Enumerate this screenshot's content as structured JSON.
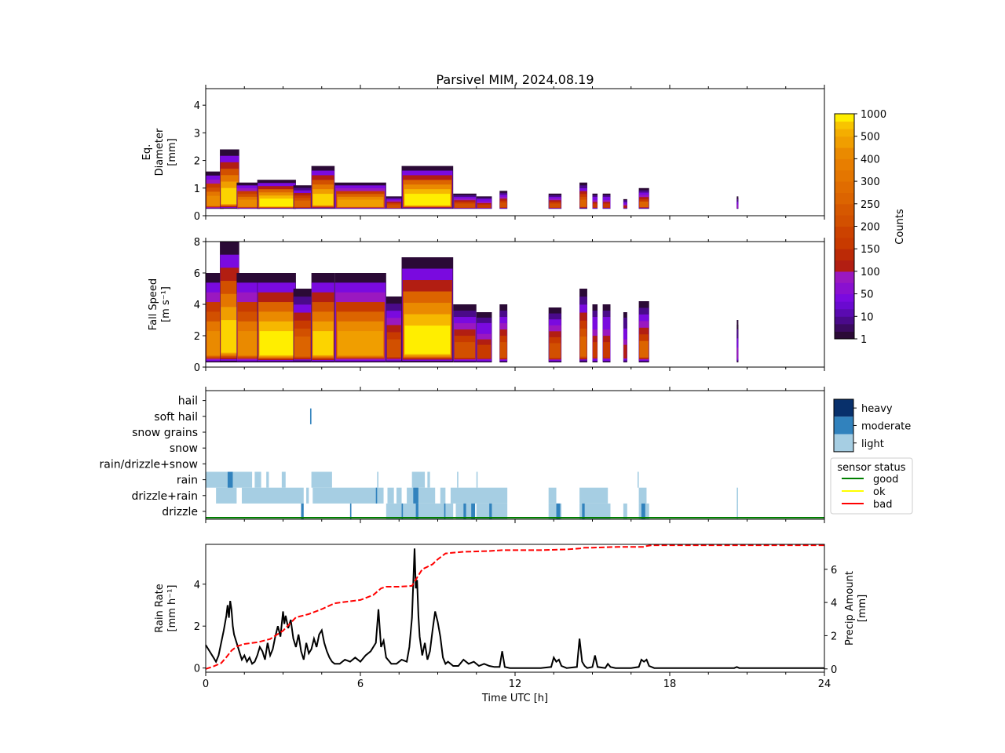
{
  "title": "Parsivel MIM, 2024.08.19",
  "colors": {
    "axis": "#000000",
    "heavy": "#08306b",
    "moderate": "#3182bd",
    "light": "#a6cee3",
    "good": "#008000",
    "ok": "#ffff00",
    "bad": "#ff0000",
    "rain_rate_line": "#000000",
    "precip_line": "#ff0000"
  },
  "chart_data": [
    {
      "type": "heatmap",
      "name": "diameter-panel",
      "ylabel": [
        "Eq.",
        "Diameter",
        "[mm]"
      ],
      "xlim": [
        0,
        24
      ],
      "ylim": [
        0,
        4.6
      ],
      "yticks": [
        "0",
        "1",
        "2",
        "3",
        "4"
      ],
      "colorbar": {
        "label": "Counts",
        "ticks": [
          "1",
          "10",
          "50",
          "100",
          "150",
          "200",
          "250",
          "300",
          "400",
          "500",
          "1000"
        ]
      },
      "episodes": [
        {
          "t0": 0.0,
          "t1": 0.7,
          "top": 1.6,
          "peak": 1.0
        },
        {
          "t0": 0.55,
          "t1": 1.3,
          "top": 2.4,
          "peak": 1.3
        },
        {
          "t0": 1.2,
          "t1": 2.1,
          "top": 1.2,
          "peak": 1.0
        },
        {
          "t0": 2.0,
          "t1": 3.5,
          "top": 1.3,
          "peak": 1.4
        },
        {
          "t0": 3.4,
          "t1": 4.1,
          "top": 1.1,
          "peak": 0.8
        },
        {
          "t0": 4.1,
          "t1": 5.0,
          "top": 1.8,
          "peak": 1.3
        },
        {
          "t0": 5.0,
          "t1": 7.0,
          "top": 1.2,
          "peak": 1.1
        },
        {
          "t0": 7.0,
          "t1": 7.6,
          "top": 0.7,
          "peak": 0.6
        },
        {
          "t0": 7.6,
          "t1": 9.6,
          "top": 1.8,
          "peak": 1.4
        },
        {
          "t0": 9.6,
          "t1": 10.5,
          "top": 0.8,
          "peak": 0.6
        },
        {
          "t0": 10.5,
          "t1": 11.1,
          "top": 0.7,
          "peak": 0.5
        },
        {
          "t0": 11.4,
          "t1": 11.7,
          "top": 0.9,
          "peak": 0.6
        },
        {
          "t0": 13.3,
          "t1": 13.8,
          "top": 0.8,
          "peak": 0.6
        },
        {
          "t0": 14.5,
          "t1": 14.8,
          "top": 1.2,
          "peak": 0.8
        },
        {
          "t0": 15.0,
          "t1": 15.2,
          "top": 0.8,
          "peak": 0.5
        },
        {
          "t0": 15.4,
          "t1": 15.7,
          "top": 0.8,
          "peak": 0.5
        },
        {
          "t0": 16.2,
          "t1": 16.35,
          "top": 0.6,
          "peak": 0.4
        },
        {
          "t0": 16.8,
          "t1": 17.2,
          "top": 1.0,
          "peak": 0.7
        },
        {
          "t0": 20.6,
          "t1": 20.65,
          "top": 0.7,
          "peak": 0.3
        }
      ]
    },
    {
      "type": "heatmap",
      "name": "fallspeed-panel",
      "ylabel": [
        "Fall Speed",
        "[m s⁻¹]"
      ],
      "xlim": [
        0,
        24
      ],
      "ylim": [
        0,
        8
      ],
      "yticks": [
        "0",
        "2",
        "4",
        "6",
        "8"
      ],
      "episodes": [
        {
          "t0": 0.0,
          "t1": 0.7,
          "top": 6.0,
          "peak": 1.0
        },
        {
          "t0": 0.55,
          "t1": 1.3,
          "top": 8.0,
          "peak": 1.3
        },
        {
          "t0": 1.2,
          "t1": 2.1,
          "top": 6.0,
          "peak": 1.0
        },
        {
          "t0": 2.0,
          "t1": 3.5,
          "top": 6.0,
          "peak": 1.4
        },
        {
          "t0": 3.4,
          "t1": 4.1,
          "top": 5.0,
          "peak": 0.8
        },
        {
          "t0": 4.1,
          "t1": 5.0,
          "top": 6.0,
          "peak": 1.3
        },
        {
          "t0": 5.0,
          "t1": 7.0,
          "top": 6.0,
          "peak": 1.1
        },
        {
          "t0": 7.0,
          "t1": 7.6,
          "top": 4.5,
          "peak": 0.6
        },
        {
          "t0": 7.6,
          "t1": 9.6,
          "top": 7.0,
          "peak": 1.4
        },
        {
          "t0": 9.6,
          "t1": 10.5,
          "top": 4.0,
          "peak": 0.6
        },
        {
          "t0": 10.5,
          "t1": 11.1,
          "top": 3.5,
          "peak": 0.5
        },
        {
          "t0": 11.4,
          "t1": 11.7,
          "top": 4.0,
          "peak": 0.6
        },
        {
          "t0": 13.3,
          "t1": 13.8,
          "top": 3.8,
          "peak": 0.6
        },
        {
          "t0": 14.5,
          "t1": 14.8,
          "top": 5.0,
          "peak": 0.8
        },
        {
          "t0": 15.0,
          "t1": 15.2,
          "top": 4.0,
          "peak": 0.5
        },
        {
          "t0": 15.4,
          "t1": 15.7,
          "top": 4.0,
          "peak": 0.5
        },
        {
          "t0": 16.2,
          "t1": 16.35,
          "top": 3.5,
          "peak": 0.4
        },
        {
          "t0": 16.8,
          "t1": 17.2,
          "top": 4.2,
          "peak": 0.7
        },
        {
          "t0": 20.6,
          "t1": 20.65,
          "top": 3.0,
          "peak": 0.3
        }
      ]
    },
    {
      "type": "heatmap",
      "name": "precip-type-panel",
      "categories": [
        "drizzle",
        "drizzle+rain",
        "rain",
        "rain/drizzle+snow",
        "snow",
        "snow grains",
        "soft hail",
        "hail"
      ],
      "xlim": [
        0,
        24
      ],
      "intensity_legend": [
        "heavy",
        "moderate",
        "light"
      ],
      "status_legend": {
        "title": "sensor status",
        "items": [
          "good",
          "ok",
          "bad"
        ]
      },
      "status_good_spans": [
        [
          0,
          24
        ]
      ],
      "light_spans": {
        "rain": [
          [
            0,
            1.8
          ],
          [
            1.9,
            2.15
          ],
          [
            2.35,
            2.45
          ],
          [
            2.95,
            3.1
          ],
          [
            4.1,
            4.9
          ],
          [
            6.65,
            6.7
          ],
          [
            8.0,
            8.5
          ],
          [
            8.6,
            8.7
          ],
          [
            9.75,
            9.8
          ],
          [
            10.5,
            10.55
          ],
          [
            16.75,
            16.8
          ]
        ],
        "drizzle+rain": [
          [
            0.4,
            1.2
          ],
          [
            1.4,
            3.8
          ],
          [
            3.9,
            4.0
          ],
          [
            4.15,
            6.9
          ],
          [
            7.05,
            7.3
          ],
          [
            7.4,
            7.6
          ],
          [
            7.8,
            8.9
          ],
          [
            9.1,
            9.3
          ],
          [
            9.5,
            11.7
          ],
          [
            13.3,
            13.6
          ],
          [
            14.5,
            15.6
          ],
          [
            16.8,
            17.1
          ],
          [
            20.6,
            20.65
          ]
        ],
        "drizzle": [
          [
            7.0,
            9.6
          ],
          [
            9.7,
            10.4
          ],
          [
            10.5,
            11.7
          ],
          [
            13.3,
            13.8
          ],
          [
            14.5,
            15.7
          ],
          [
            16.2,
            16.35
          ],
          [
            16.8,
            17.2
          ],
          [
            20.6,
            20.65
          ]
        ]
      },
      "moderate_spans": {
        "soft hail": [
          [
            4.05,
            4.1
          ]
        ],
        "rain": [
          [
            0.85,
            1.05
          ]
        ],
        "drizzle+rain": [
          [
            6.6,
            6.65
          ],
          [
            8.05,
            8.25
          ]
        ],
        "drizzle": [
          [
            3.7,
            3.8
          ],
          [
            5.6,
            5.65
          ],
          [
            7.6,
            7.65
          ],
          [
            8.15,
            8.25
          ],
          [
            9.25,
            9.3
          ],
          [
            10.0,
            10.1
          ],
          [
            10.3,
            10.45
          ],
          [
            11.0,
            11.1
          ],
          [
            13.6,
            13.75
          ],
          [
            14.6,
            14.7
          ],
          [
            16.9,
            17.05
          ]
        ]
      }
    },
    {
      "type": "line",
      "name": "rain-rate-panel",
      "xlabel": "Time UTC [h]",
      "xlim": [
        0,
        24
      ],
      "xticks": [
        "0",
        "6",
        "12",
        "18",
        "24"
      ],
      "ylabel_left": [
        "Rain Rate",
        "[mm h⁻¹]"
      ],
      "ylim_left": [
        -0.2,
        5.9
      ],
      "yticks_left": [
        "0",
        "2",
        "4"
      ],
      "ylabel_right": [
        "Precip Amount",
        "[mm]"
      ],
      "ylim_right": [
        -0.2,
        7.5
      ],
      "yticks_right": [
        "0",
        "2",
        "4",
        "6"
      ],
      "series": [
        {
          "axis": "left",
          "x": [
            0,
            0.1,
            0.2,
            0.3,
            0.4,
            0.5,
            0.6,
            0.7,
            0.8,
            0.85,
            0.9,
            0.95,
            1.0,
            1.05,
            1.1,
            1.2,
            1.3,
            1.4,
            1.5,
            1.6,
            1.7,
            1.8,
            1.9,
            2.0,
            2.1,
            2.2,
            2.3,
            2.4,
            2.5,
            2.6,
            2.7,
            2.8,
            2.9,
            3.0,
            3.05,
            3.1,
            3.2,
            3.3,
            3.4,
            3.5,
            3.6,
            3.7,
            3.8,
            3.9,
            4.0,
            4.1,
            4.2,
            4.3,
            4.4,
            4.5,
            4.6,
            4.7,
            4.8,
            4.9,
            5.0,
            5.2,
            5.4,
            5.6,
            5.8,
            6.0,
            6.2,
            6.4,
            6.6,
            6.7,
            6.8,
            6.9,
            7.0,
            7.2,
            7.4,
            7.6,
            7.8,
            7.9,
            8.0,
            8.1,
            8.15,
            8.2,
            8.25,
            8.3,
            8.4,
            8.5,
            8.6,
            8.7,
            8.8,
            8.9,
            9.0,
            9.1,
            9.2,
            9.3,
            9.4,
            9.6,
            9.8,
            10.0,
            10.2,
            10.4,
            10.6,
            10.8,
            11.0,
            11.2,
            11.4,
            11.5,
            11.6,
            11.8,
            12.0,
            13.0,
            13.4,
            13.5,
            13.6,
            13.7,
            13.8,
            14.0,
            14.4,
            14.5,
            14.6,
            14.7,
            14.8,
            15.0,
            15.1,
            15.2,
            15.5,
            15.6,
            15.7,
            15.9,
            16.5,
            16.8,
            16.9,
            17.0,
            17.1,
            17.2,
            17.4,
            20.5,
            20.6,
            20.7,
            24
          ],
          "y": [
            1.1,
            0.9,
            0.7,
            0.5,
            0.3,
            0.6,
            1.2,
            1.8,
            2.5,
            3.0,
            2.4,
            3.2,
            2.8,
            2.0,
            1.6,
            1.2,
            0.8,
            0.4,
            0.6,
            0.3,
            0.5,
            0.2,
            0.3,
            0.6,
            1.0,
            0.8,
            0.4,
            1.2,
            0.6,
            0.9,
            1.5,
            2.0,
            1.5,
            2.7,
            2.1,
            2.5,
            1.9,
            2.3,
            1.4,
            1.0,
            1.6,
            0.8,
            0.4,
            1.2,
            0.7,
            0.9,
            1.4,
            1.0,
            1.6,
            1.8,
            1.2,
            0.8,
            0.5,
            0.3,
            0.2,
            0.2,
            0.4,
            0.3,
            0.5,
            0.3,
            0.6,
            0.8,
            1.2,
            2.8,
            1.0,
            1.3,
            0.5,
            0.2,
            0.2,
            0.4,
            0.3,
            1.0,
            2.4,
            5.7,
            3.8,
            4.2,
            2.5,
            1.5,
            0.6,
            1.2,
            0.4,
            0.8,
            1.8,
            2.7,
            2.2,
            1.5,
            0.5,
            0.2,
            0.3,
            0.1,
            0.1,
            0.4,
            0.2,
            0.3,
            0.1,
            0.2,
            0.1,
            0.05,
            0.05,
            0.8,
            0.05,
            0.0,
            0.0,
            0.0,
            0.05,
            0.5,
            0.3,
            0.4,
            0.1,
            0.0,
            0.05,
            1.4,
            0.3,
            0.1,
            0.0,
            0.05,
            0.6,
            0.05,
            0.0,
            0.2,
            0.05,
            0.0,
            0.0,
            0.05,
            0.4,
            0.3,
            0.4,
            0.1,
            0.0,
            0.0,
            0.05,
            0.0,
            0.0
          ],
          "style": "solid"
        },
        {
          "axis": "right",
          "x": [
            0,
            0.3,
            0.6,
            0.8,
            1.0,
            1.2,
            1.5,
            2.0,
            2.5,
            3.0,
            3.5,
            4.0,
            4.5,
            5.0,
            5.5,
            6.0,
            6.5,
            6.8,
            7.0,
            7.5,
            8.0,
            8.2,
            8.4,
            8.6,
            8.8,
            9.0,
            9.3,
            9.6,
            10.0,
            11.0,
            11.5,
            12.0,
            13.0,
            14.0,
            14.5,
            14.7,
            15.0,
            16.0,
            17.0,
            17.1,
            17.3,
            18.0,
            20.0,
            20.7,
            24
          ],
          "y": [
            0,
            0.15,
            0.35,
            0.7,
            1.1,
            1.35,
            1.5,
            1.6,
            1.8,
            2.3,
            3.1,
            3.3,
            3.6,
            3.95,
            4.05,
            4.15,
            4.45,
            4.85,
            4.95,
            4.95,
            5.0,
            5.5,
            6.0,
            6.15,
            6.3,
            6.6,
            6.95,
            7.0,
            7.05,
            7.1,
            7.15,
            7.15,
            7.15,
            7.2,
            7.25,
            7.3,
            7.3,
            7.35,
            7.35,
            7.4,
            7.45,
            7.45,
            7.45,
            7.45,
            7.45
          ],
          "style": "dashed"
        }
      ]
    }
  ]
}
